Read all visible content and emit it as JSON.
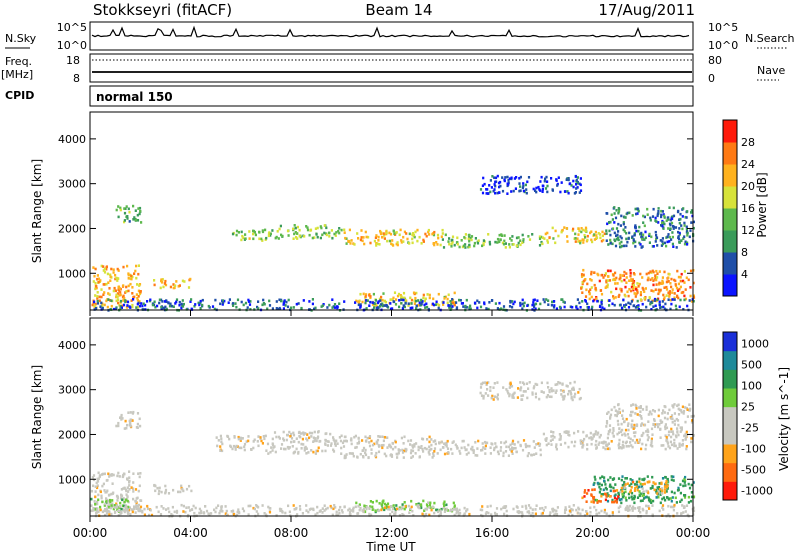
{
  "header": {
    "station": "Stokkseyri (fitACF)",
    "beam": "Beam 14",
    "date": "17/Aug/2011"
  },
  "strip_panels": {
    "nsky_label": "N.Sky",
    "nsky_ticks": [
      "10^5",
      "10^0"
    ],
    "nsearch_label": "N.Search",
    "nsearch_ticks": [
      "10^5",
      "10^0"
    ],
    "freq_label": "Freq.",
    "freq_unit": "[MHz]",
    "freq_ticks": [
      "18",
      "8"
    ],
    "nave_label": "Nave",
    "nave_ticks": [
      "80",
      "0"
    ],
    "cpid_label": "CPID",
    "cpid_value": "normal 150"
  },
  "colors": {
    "power_scale": [
      "#0b14ff",
      "#1f4fa8",
      "#3a9b5a",
      "#5db84c",
      "#d7e23a",
      "#ffb21e",
      "#ff7a14",
      "#ff1a0a"
    ],
    "velocity_scale": [
      "#ff1a0a",
      "#ff6a10",
      "#ffa31a",
      "#c8c8c0",
      "#c8c8c0",
      "#6fcb3a",
      "#2f9a52",
      "#1e8a9a",
      "#1a2fd8"
    ],
    "ground_scatter": "#c8c8c0"
  },
  "chart_data": [
    {
      "type": "heatmap",
      "name": "power",
      "ylabel": "Slant Range [km]",
      "yticks": [
        1000,
        2000,
        3000,
        4000
      ],
      "ylim": [
        180,
        4600
      ],
      "xlim": [
        0,
        24
      ],
      "colorbar_label": "Power [dB]",
      "colorbar_ticks": [
        4,
        8,
        12,
        16,
        20,
        24,
        28
      ],
      "colorbar_range": [
        0,
        32
      ],
      "bands": [
        {
          "x": [
            0.0,
            2.0
          ],
          "y": [
            250,
            1200
          ],
          "level": 22
        },
        {
          "x": [
            1.0,
            2.0
          ],
          "y": [
            2150,
            2550
          ],
          "level": 12
        },
        {
          "x": [
            2.5,
            4.0
          ],
          "y": [
            700,
            900
          ],
          "level": 22
        },
        {
          "x": [
            5.5,
            7.0
          ],
          "y": [
            1750,
            2000
          ],
          "level": 16
        },
        {
          "x": [
            7.0,
            10.0
          ],
          "y": [
            1800,
            2100
          ],
          "level": 14
        },
        {
          "x": [
            10.0,
            14.0
          ],
          "y": [
            1650,
            2000
          ],
          "level": 20
        },
        {
          "x": [
            14.0,
            18.0
          ],
          "y": [
            1600,
            1900
          ],
          "level": 14
        },
        {
          "x": [
            18.0,
            20.5
          ],
          "y": [
            1700,
            2050
          ],
          "level": 20
        },
        {
          "x": [
            20.5,
            24.0
          ],
          "y": [
            1600,
            2500
          ],
          "level": 8
        },
        {
          "x": [
            19.5,
            24.0
          ],
          "y": [
            400,
            1100
          ],
          "level": 24
        },
        {
          "x": [
            15.5,
            19.5
          ],
          "y": [
            2800,
            3200
          ],
          "level": 4
        },
        {
          "x": [
            10.5,
            14.5
          ],
          "y": [
            300,
            600
          ],
          "level": 20
        },
        {
          "x": [
            0.0,
            24.0
          ],
          "y": [
            200,
            450
          ],
          "level": 6
        }
      ]
    },
    {
      "type": "heatmap",
      "name": "velocity",
      "ylabel": "Slant Range [km]",
      "yticks": [
        1000,
        2000,
        3000,
        4000
      ],
      "ylim": [
        180,
        4600
      ],
      "xlim": [
        0,
        24
      ],
      "xlabel": "Time UT",
      "xticks": [
        "00:00",
        "04:00",
        "08:00",
        "12:00",
        "16:00",
        "20:00",
        "00:00"
      ],
      "colorbar_label": "Velocity [m s^-1]",
      "colorbar_ticks": [
        "1000",
        "500",
        "100",
        "25",
        "-25",
        "-100",
        "-500",
        "-1000"
      ],
      "bands": [
        {
          "x": [
            0.0,
            2.0
          ],
          "y": [
            250,
            1200
          ],
          "level": 3
        },
        {
          "x": [
            1.0,
            2.0
          ],
          "y": [
            2150,
            2550
          ],
          "level": 3
        },
        {
          "x": [
            2.5,
            4.0
          ],
          "y": [
            700,
            900
          ],
          "level": 3
        },
        {
          "x": [
            5.0,
            7.0
          ],
          "y": [
            1650,
            2000
          ],
          "level": 3
        },
        {
          "x": [
            7.0,
            10.0
          ],
          "y": [
            1600,
            2100
          ],
          "level": 3
        },
        {
          "x": [
            10.0,
            14.0
          ],
          "y": [
            1500,
            2000
          ],
          "level": 3
        },
        {
          "x": [
            14.0,
            18.0
          ],
          "y": [
            1550,
            1900
          ],
          "level": 3
        },
        {
          "x": [
            18.0,
            20.5
          ],
          "y": [
            1700,
            2100
          ],
          "level": 3
        },
        {
          "x": [
            20.5,
            24.0
          ],
          "y": [
            1700,
            2700
          ],
          "level": 3
        },
        {
          "x": [
            15.5,
            19.5
          ],
          "y": [
            2800,
            3200
          ],
          "level": 3
        },
        {
          "x": [
            20.0,
            24.0
          ],
          "y": [
            500,
            1100
          ],
          "level": 6
        },
        {
          "x": [
            19.5,
            21.0
          ],
          "y": [
            500,
            800
          ],
          "level": 1
        },
        {
          "x": [
            21.0,
            23.0
          ],
          "y": [
            700,
            1000
          ],
          "level": 2
        },
        {
          "x": [
            0.0,
            1.5
          ],
          "y": [
            300,
            600
          ],
          "level": 5
        },
        {
          "x": [
            10.5,
            14.5
          ],
          "y": [
            300,
            550
          ],
          "level": 5
        },
        {
          "x": [
            0.0,
            24.0
          ],
          "y": [
            200,
            450
          ],
          "level": 3
        }
      ]
    }
  ]
}
